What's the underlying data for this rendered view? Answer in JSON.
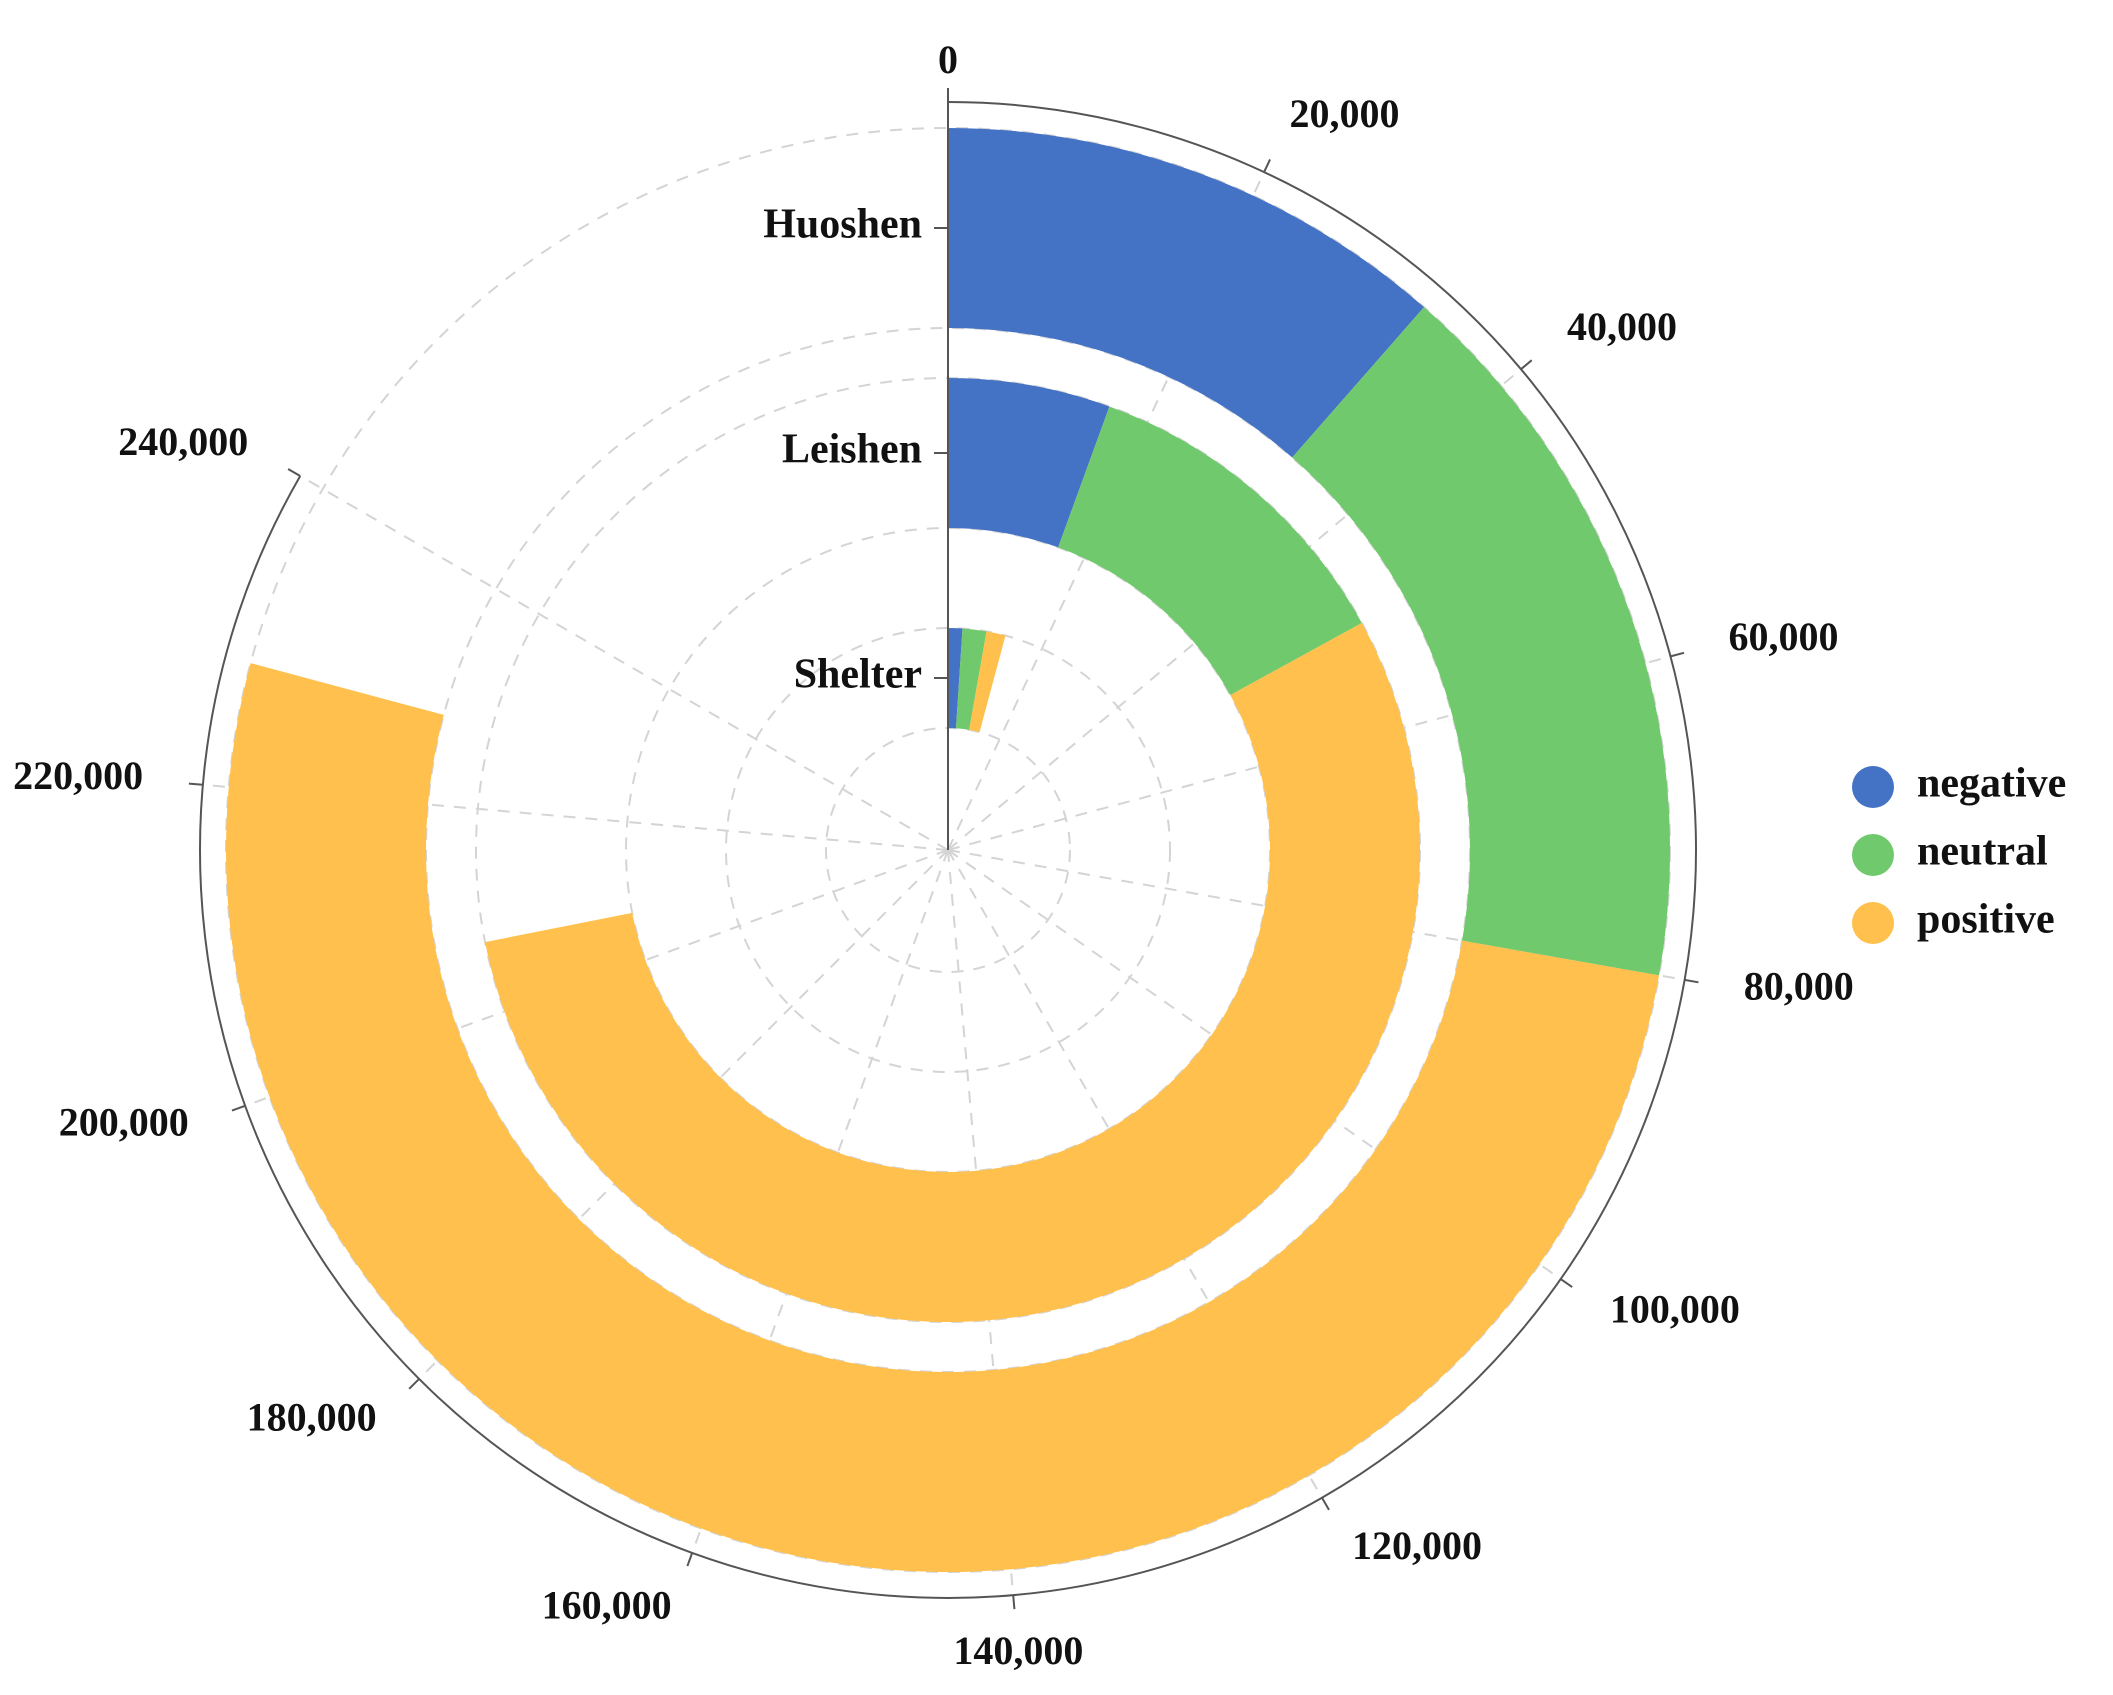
{
  "chart_data": {
    "type": "bar",
    "subtype": "stacked-radial-bar",
    "categories": [
      "Huoshen",
      "Leishen",
      "Shelter"
    ],
    "series": [
      {
        "name": "negative",
        "color": "#4472C4",
        "values": [
          33000,
          16000,
          3000
        ]
      },
      {
        "name": "neutral",
        "color": "#70C96D",
        "values": [
          47000,
          33000,
          5000
        ]
      },
      {
        "name": "positive",
        "color": "#FFC04D",
        "values": [
          148000,
          158000,
          4000
        ]
      }
    ],
    "angular_axis": {
      "range": [
        0,
        240000
      ],
      "tick_labels": [
        "0",
        "20,000",
        "40,000",
        "60,000",
        "80,000",
        "100,000",
        "120,000",
        "140,000",
        "160,000",
        "180,000",
        "200,000",
        "220,000",
        "240,000"
      ]
    },
    "grid": true,
    "legend": {
      "position": "right",
      "entries": [
        "negative",
        "neutral",
        "positive"
      ]
    }
  }
}
